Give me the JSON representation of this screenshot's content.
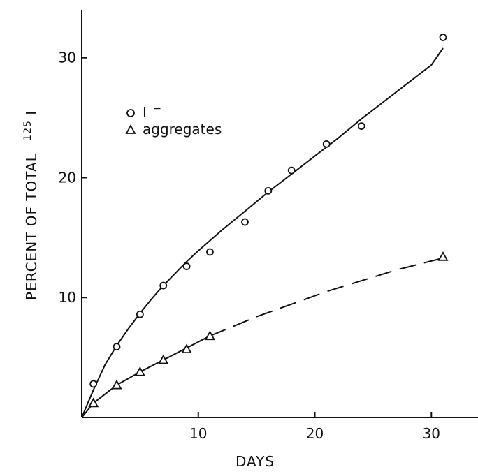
{
  "chart_data": {
    "type": "scatter",
    "xlabel": "DAYS",
    "ylabel": "PERCENT OF TOTAL",
    "ylabel_superscript": "125",
    "ylabel_suffix": "I",
    "xlim": [
      0,
      34
    ],
    "ylim": [
      0,
      34
    ],
    "x_ticks": [
      10,
      20,
      30
    ],
    "x_tick_labels": [
      "10",
      "20",
      "30"
    ],
    "y_ticks": [
      10,
      20,
      30
    ],
    "y_tick_labels": [
      "10",
      "20",
      "30"
    ],
    "grid": false,
    "legend_placement": "upper-left",
    "series": [
      {
        "name": "I",
        "name_superscript": "−",
        "marker": "circle",
        "x": [
          1,
          3,
          5,
          7,
          9,
          11,
          14,
          16,
          18,
          21,
          24,
          31
        ],
        "y": [
          2.8,
          5.9,
          8.6,
          11.0,
          12.6,
          13.8,
          16.3,
          18.9,
          20.6,
          22.8,
          24.3,
          31.7
        ],
        "fit": {
          "style": "solid",
          "x": [
            0,
            1,
            2,
            3,
            4,
            5,
            6,
            7,
            8,
            9,
            10,
            12,
            14,
            16,
            18,
            20,
            22,
            24,
            26,
            28,
            30,
            31
          ],
          "y": [
            0,
            2.3,
            4.4,
            6.0,
            7.4,
            8.7,
            9.9,
            11.0,
            12.0,
            13.0,
            13.9,
            15.6,
            17.2,
            18.8,
            20.3,
            21.8,
            23.3,
            24.9,
            26.4,
            27.9,
            29.4,
            30.8
          ]
        }
      },
      {
        "name": "aggregates",
        "marker": "triangle",
        "x": [
          1,
          3,
          5,
          7,
          9,
          11,
          31
        ],
        "y": [
          1.2,
          2.7,
          3.8,
          4.8,
          5.7,
          6.8,
          13.4
        ],
        "fit": {
          "style": "solid-then-dashed",
          "dash_from_x": 11,
          "x": [
            0,
            1,
            3,
            5,
            7,
            9,
            11,
            13,
            15,
            17,
            19,
            21,
            23,
            25,
            27,
            29,
            31
          ],
          "y": [
            0,
            1.2,
            2.7,
            3.8,
            4.8,
            5.8,
            6.8,
            7.6,
            8.4,
            9.1,
            9.8,
            10.5,
            11.1,
            11.7,
            12.3,
            12.8,
            13.3
          ]
        }
      }
    ]
  }
}
